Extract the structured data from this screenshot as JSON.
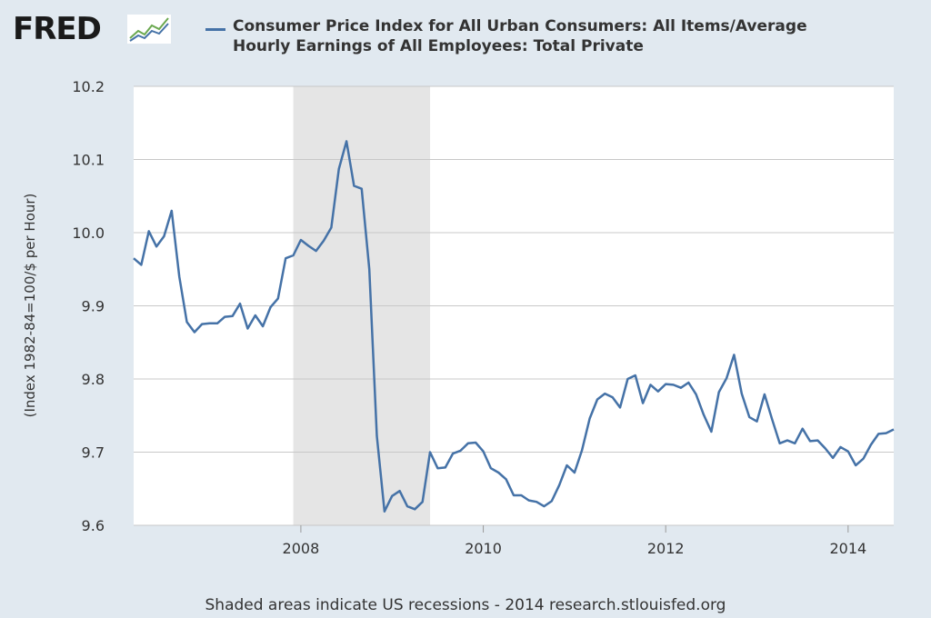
{
  "logo": {
    "text": "FRED",
    "mark": "fred-chart-logo-icon"
  },
  "legend": {
    "line1": "Consumer Price Index for All Urban Consumers: All Items/Average",
    "line2": "Hourly Earnings of All Employees: Total Private",
    "color": "#4572a7"
  },
  "footer": "Shaded areas indicate US recessions - 2014 research.stlouisfed.org",
  "chart_data": {
    "type": "line",
    "title": "Consumer Price Index for All Urban Consumers: All Items/Average Hourly Earnings of All Employees: Total Private",
    "xlabel": "",
    "ylabel": "(Index 1982-84=100/$ per Hour)",
    "ylim": [
      9.6,
      10.2
    ],
    "xlim": [
      "2006-03",
      "2014-07"
    ],
    "yticks": [
      "9.6",
      "9.7",
      "9.8",
      "9.9",
      "10.0",
      "10.1",
      "10.2"
    ],
    "xticks": [
      "2008",
      "2010",
      "2012",
      "2014"
    ],
    "grid": true,
    "recessions": [
      {
        "start": "2007-12",
        "end": "2009-06",
        "color": "#e5e5e5"
      }
    ],
    "series": [
      {
        "name": "Consumer Price Index for All Urban Consumers: All Items/Average Hourly Earnings of All Employees: Total Private",
        "color": "#4572a7",
        "x": [
          "2006-03",
          "2006-04",
          "2006-05",
          "2006-06",
          "2006-07",
          "2006-08",
          "2006-09",
          "2006-10",
          "2006-11",
          "2006-12",
          "2007-01",
          "2007-02",
          "2007-03",
          "2007-04",
          "2007-05",
          "2007-06",
          "2007-07",
          "2007-08",
          "2007-09",
          "2007-10",
          "2007-11",
          "2007-12",
          "2008-01",
          "2008-02",
          "2008-03",
          "2008-04",
          "2008-05",
          "2008-06",
          "2008-07",
          "2008-08",
          "2008-09",
          "2008-10",
          "2008-11",
          "2008-12",
          "2009-01",
          "2009-02",
          "2009-03",
          "2009-04",
          "2009-05",
          "2009-06",
          "2009-07",
          "2009-08",
          "2009-09",
          "2009-10",
          "2009-11",
          "2009-12",
          "2010-01",
          "2010-02",
          "2010-03",
          "2010-04",
          "2010-05",
          "2010-06",
          "2010-07",
          "2010-08",
          "2010-09",
          "2010-10",
          "2010-11",
          "2010-12",
          "2011-01",
          "2011-02",
          "2011-03",
          "2011-04",
          "2011-05",
          "2011-06",
          "2011-07",
          "2011-08",
          "2011-09",
          "2011-10",
          "2011-11",
          "2011-12",
          "2012-01",
          "2012-02",
          "2012-03",
          "2012-04",
          "2012-05",
          "2012-06",
          "2012-07",
          "2012-08",
          "2012-09",
          "2012-10",
          "2012-11",
          "2012-12",
          "2013-01",
          "2013-02",
          "2013-03",
          "2013-04",
          "2013-05",
          "2013-06",
          "2013-07",
          "2013-08",
          "2013-09",
          "2013-10",
          "2013-11",
          "2013-12",
          "2014-01",
          "2014-02",
          "2014-03",
          "2014-04",
          "2014-05",
          "2014-06",
          "2014-07"
        ],
        "values": [
          9.965,
          9.956,
          10.002,
          9.981,
          9.995,
          10.03,
          9.94,
          9.878,
          9.864,
          9.875,
          9.876,
          9.876,
          9.885,
          9.886,
          9.903,
          9.869,
          9.887,
          9.872,
          9.898,
          9.91,
          9.965,
          9.969,
          9.99,
          9.982,
          9.975,
          9.989,
          10.007,
          10.087,
          10.125,
          10.064,
          10.06,
          9.95,
          9.722,
          9.619,
          9.64,
          9.647,
          9.626,
          9.622,
          9.632,
          9.7,
          9.678,
          9.679,
          9.698,
          9.702,
          9.712,
          9.713,
          9.701,
          9.678,
          9.672,
          9.663,
          9.641,
          9.641,
          9.634,
          9.632,
          9.626,
          9.633,
          9.655,
          9.682,
          9.672,
          9.703,
          9.746,
          9.772,
          9.78,
          9.775,
          9.761,
          9.8,
          9.805,
          9.767,
          9.792,
          9.783,
          9.793,
          9.792,
          9.788,
          9.795,
          9.779,
          9.751,
          9.728,
          9.782,
          9.801,
          9.833,
          9.78,
          9.748,
          9.742,
          9.779,
          9.745,
          9.712,
          9.716,
          9.712,
          9.732,
          9.715,
          9.716,
          9.705,
          9.692,
          9.707,
          9.701,
          9.682,
          9.691,
          9.71,
          9.725,
          9.726,
          9.731
        ]
      }
    ]
  }
}
